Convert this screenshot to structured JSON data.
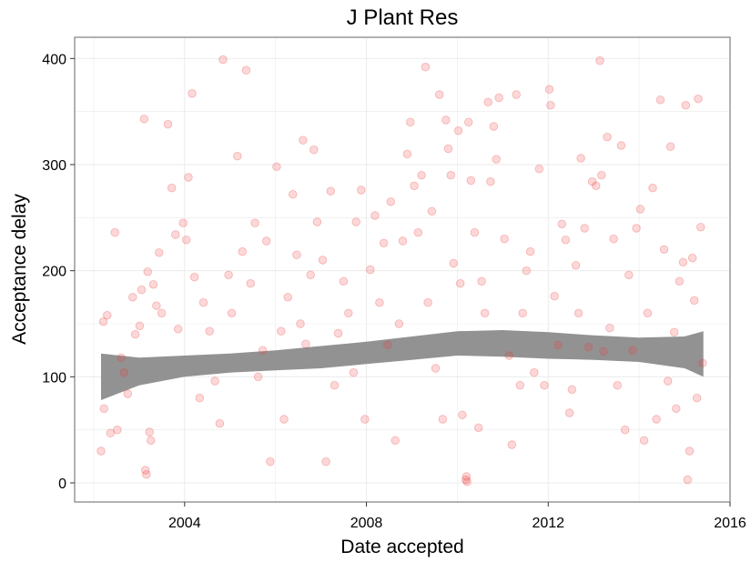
{
  "chart_data": {
    "type": "scatter",
    "title": "J Plant Res",
    "xlabel": "Date accepted",
    "ylabel": "Acceptance delay",
    "xlim": [
      "2001-08-01",
      "2016-01-01"
    ],
    "ylim": [
      -18,
      420
    ],
    "x_ticks": [
      "2004",
      "2008",
      "2012",
      "2016"
    ],
    "y_ticks": [
      "0",
      "100",
      "200",
      "300",
      "400"
    ],
    "grid": true,
    "point_color": "#ef3b3b",
    "band_color": "#8c8c8c",
    "series": [
      {
        "type": "scatter",
        "x_range": [
          "2002-03-01",
          "2015-06-01"
        ],
        "points": [
          [
            "2002-03-01",
            30
          ],
          [
            "2002-03-20",
            152
          ],
          [
            "2002-03-25",
            70
          ],
          [
            "2002-04-20",
            158
          ],
          [
            "2002-05-15",
            47
          ],
          [
            "2002-06-20",
            236
          ],
          [
            "2002-07-10",
            50
          ],
          [
            "2002-08-10",
            118
          ],
          [
            "2002-09-01",
            104
          ],
          [
            "2002-10-01",
            84
          ],
          [
            "2002-11-10",
            175
          ],
          [
            "2002-12-01",
            140
          ],
          [
            "2003-01-05",
            148
          ],
          [
            "2003-01-20",
            182
          ],
          [
            "2003-02-10",
            343
          ],
          [
            "2003-02-20",
            12
          ],
          [
            "2003-03-01",
            8
          ],
          [
            "2003-03-10",
            199
          ],
          [
            "2003-03-25",
            48
          ],
          [
            "2003-04-05",
            40
          ],
          [
            "2003-04-25",
            187
          ],
          [
            "2003-05-20",
            167
          ],
          [
            "2003-06-10",
            217
          ],
          [
            "2003-07-01",
            160
          ],
          [
            "2003-08-20",
            338
          ],
          [
            "2003-09-20",
            278
          ],
          [
            "2003-10-20",
            234
          ],
          [
            "2003-11-10",
            145
          ],
          [
            "2003-12-20",
            245
          ],
          [
            "2004-01-15",
            229
          ],
          [
            "2004-02-01",
            288
          ],
          [
            "2004-03-01",
            367
          ],
          [
            "2004-03-20",
            194
          ],
          [
            "2004-05-01",
            80
          ],
          [
            "2004-06-01",
            170
          ],
          [
            "2004-07-20",
            143
          ],
          [
            "2004-09-01",
            96
          ],
          [
            "2004-10-10",
            56
          ],
          [
            "2004-11-05",
            399
          ],
          [
            "2004-12-20",
            196
          ],
          [
            "2005-01-15",
            160
          ],
          [
            "2005-03-01",
            308
          ],
          [
            "2005-04-10",
            218
          ],
          [
            "2005-05-10",
            389
          ],
          [
            "2005-06-15",
            188
          ],
          [
            "2005-07-20",
            245
          ],
          [
            "2005-08-15",
            100
          ],
          [
            "2005-09-20",
            125
          ],
          [
            "2005-10-20",
            228
          ],
          [
            "2005-11-20",
            20
          ],
          [
            "2006-01-10",
            298
          ],
          [
            "2006-02-15",
            143
          ],
          [
            "2006-03-10",
            60
          ],
          [
            "2006-04-10",
            175
          ],
          [
            "2006-05-20",
            272
          ],
          [
            "2006-06-20",
            215
          ],
          [
            "2006-07-20",
            150
          ],
          [
            "2006-08-10",
            323
          ],
          [
            "2006-09-01",
            131
          ],
          [
            "2006-10-10",
            196
          ],
          [
            "2006-11-05",
            314
          ],
          [
            "2006-12-01",
            246
          ],
          [
            "2007-01-15",
            210
          ],
          [
            "2007-02-10",
            20
          ],
          [
            "2007-03-20",
            275
          ],
          [
            "2007-04-20",
            92
          ],
          [
            "2007-05-20",
            141
          ],
          [
            "2007-07-01",
            190
          ],
          [
            "2007-08-10",
            160
          ],
          [
            "2007-09-20",
            104
          ],
          [
            "2007-10-10",
            246
          ],
          [
            "2007-11-20",
            276
          ],
          [
            "2007-12-20",
            60
          ],
          [
            "2008-02-01",
            201
          ],
          [
            "2008-03-10",
            252
          ],
          [
            "2008-04-15",
            170
          ],
          [
            "2008-05-20",
            226
          ],
          [
            "2008-06-20",
            130
          ],
          [
            "2008-07-15",
            265
          ],
          [
            "2008-08-20",
            40
          ],
          [
            "2008-09-20",
            150
          ],
          [
            "2008-10-20",
            228
          ],
          [
            "2008-11-25",
            310
          ],
          [
            "2008-12-20",
            340
          ],
          [
            "2009-01-20",
            280
          ],
          [
            "2009-02-20",
            236
          ],
          [
            "2009-03-20",
            290
          ],
          [
            "2009-04-20",
            392
          ],
          [
            "2009-05-10",
            170
          ],
          [
            "2009-06-10",
            256
          ],
          [
            "2009-07-10",
            108
          ],
          [
            "2009-08-10",
            366
          ],
          [
            "2009-09-05",
            60
          ],
          [
            "2009-10-01",
            342
          ],
          [
            "2009-10-20",
            315
          ],
          [
            "2009-11-10",
            290
          ],
          [
            "2009-12-01",
            207
          ],
          [
            "2010-01-10",
            332
          ],
          [
            "2010-01-25",
            188
          ],
          [
            "2010-02-10",
            64
          ],
          [
            "2010-03-10",
            3
          ],
          [
            "2010-03-15",
            6
          ],
          [
            "2010-03-20",
            1
          ],
          [
            "2010-04-01",
            340
          ],
          [
            "2010-04-20",
            285
          ],
          [
            "2010-05-20",
            236
          ],
          [
            "2010-06-20",
            52
          ],
          [
            "2010-07-15",
            190
          ],
          [
            "2010-08-10",
            160
          ],
          [
            "2010-09-05",
            359
          ],
          [
            "2010-09-25",
            284
          ],
          [
            "2010-10-20",
            336
          ],
          [
            "2010-11-10",
            305
          ],
          [
            "2010-12-01",
            363
          ],
          [
            "2011-01-15",
            230
          ],
          [
            "2011-02-20",
            120
          ],
          [
            "2011-03-15",
            36
          ],
          [
            "2011-04-20",
            366
          ],
          [
            "2011-05-20",
            92
          ],
          [
            "2011-06-10",
            160
          ],
          [
            "2011-07-10",
            200
          ],
          [
            "2011-08-10",
            218
          ],
          [
            "2011-09-10",
            104
          ],
          [
            "2011-10-20",
            296
          ],
          [
            "2011-12-01",
            92
          ],
          [
            "2012-01-10",
            371
          ],
          [
            "2012-01-20",
            356
          ],
          [
            "2012-02-20",
            176
          ],
          [
            "2012-03-20",
            130
          ],
          [
            "2012-04-20",
            244
          ],
          [
            "2012-05-20",
            229
          ],
          [
            "2012-06-20",
            66
          ],
          [
            "2012-07-10",
            88
          ],
          [
            "2012-08-10",
            205
          ],
          [
            "2012-09-01",
            160
          ],
          [
            "2012-09-20",
            306
          ],
          [
            "2012-10-20",
            240
          ],
          [
            "2012-11-20",
            128
          ],
          [
            "2012-12-20",
            284
          ],
          [
            "2013-01-20",
            280
          ],
          [
            "2013-02-20",
            398
          ],
          [
            "2013-03-05",
            290
          ],
          [
            "2013-03-20",
            124
          ],
          [
            "2013-04-20",
            326
          ],
          [
            "2013-05-10",
            146
          ],
          [
            "2013-06-10",
            230
          ],
          [
            "2013-07-10",
            92
          ],
          [
            "2013-08-10",
            318
          ],
          [
            "2013-09-10",
            50
          ],
          [
            "2013-10-10",
            196
          ],
          [
            "2013-11-10",
            125
          ],
          [
            "2013-12-10",
            240
          ],
          [
            "2014-01-10",
            258
          ],
          [
            "2014-02-10",
            40
          ],
          [
            "2014-03-10",
            160
          ],
          [
            "2014-04-20",
            278
          ],
          [
            "2014-05-20",
            60
          ],
          [
            "2014-06-20",
            361
          ],
          [
            "2014-07-20",
            220
          ],
          [
            "2014-08-20",
            96
          ],
          [
            "2014-09-10",
            317
          ],
          [
            "2014-10-10",
            142
          ],
          [
            "2014-10-25",
            70
          ],
          [
            "2014-11-20",
            190
          ],
          [
            "2014-12-20",
            208
          ],
          [
            "2015-01-10",
            356
          ],
          [
            "2015-01-25",
            3
          ],
          [
            "2015-02-10",
            30
          ],
          [
            "2015-03-05",
            212
          ],
          [
            "2015-03-20",
            172
          ],
          [
            "2015-04-10",
            80
          ],
          [
            "2015-04-20",
            362
          ],
          [
            "2015-05-10",
            241
          ],
          [
            "2015-05-25",
            113
          ]
        ]
      },
      {
        "type": "ribbon",
        "x": [
          "2002-03-01",
          "2003-01-01",
          "2004-01-01",
          "2005-01-01",
          "2006-01-01",
          "2007-01-01",
          "2008-01-01",
          "2009-01-01",
          "2010-01-01",
          "2011-01-01",
          "2012-01-01",
          "2013-01-01",
          "2014-01-01",
          "2015-01-01",
          "2015-06-01"
        ],
        "upper": [
          122,
          118,
          120,
          122,
          125,
          129,
          133,
          138,
          143,
          144,
          142,
          139,
          137,
          138,
          143
        ],
        "lower": [
          78,
          92,
          100,
          104,
          106,
          108,
          112,
          116,
          120,
          119,
          117,
          116,
          114,
          108,
          100
        ]
      }
    ]
  }
}
